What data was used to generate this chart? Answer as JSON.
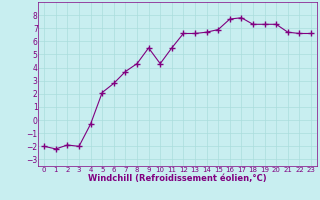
{
  "x": [
    0,
    1,
    2,
    3,
    4,
    5,
    6,
    7,
    8,
    9,
    10,
    11,
    12,
    13,
    14,
    15,
    16,
    17,
    18,
    19,
    20,
    21,
    22,
    23
  ],
  "y": [
    -2.0,
    -2.2,
    -1.9,
    -2.0,
    -0.3,
    2.1,
    2.8,
    3.7,
    4.3,
    5.5,
    4.3,
    5.5,
    6.6,
    6.6,
    6.7,
    6.9,
    7.7,
    7.8,
    7.3,
    7.3,
    7.3,
    6.7,
    6.6,
    6.6
  ],
  "line_color": "#800080",
  "marker": "+",
  "marker_color": "#800080",
  "bg_color": "#c8eef0",
  "grid_color": "#aadddd",
  "xlabel": "Windchill (Refroidissement éolien,°C)",
  "xlabel_color": "#800080",
  "tick_color": "#800080",
  "spine_color": "#800080",
  "xlim": [
    -0.5,
    23.5
  ],
  "ylim": [
    -3.5,
    9.0
  ],
  "yticks": [
    -3,
    -2,
    -1,
    0,
    1,
    2,
    3,
    4,
    5,
    6,
    7,
    8
  ],
  "xticks": [
    0,
    1,
    2,
    3,
    4,
    5,
    6,
    7,
    8,
    9,
    10,
    11,
    12,
    13,
    14,
    15,
    16,
    17,
    18,
    19,
    20,
    21,
    22,
    23
  ]
}
